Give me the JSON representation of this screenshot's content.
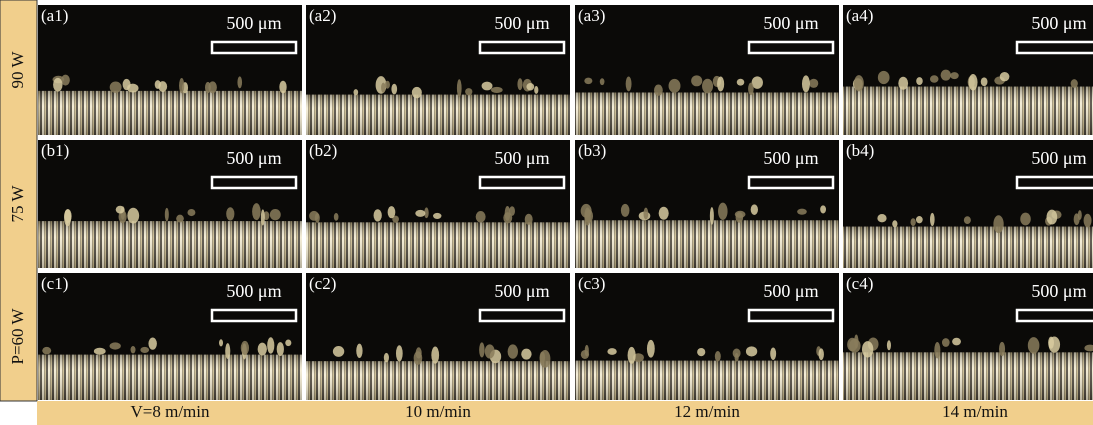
{
  "row_labels": [
    "90 W",
    "75 W",
    "P=60 W"
  ],
  "column_labels": [
    "V=8 m/min",
    "10 m/min",
    "12 m/min",
    "14 m/min"
  ],
  "panels": [
    [
      {
        "label": "(a1)",
        "scale": "500 μm"
      },
      {
        "label": "(a2)",
        "scale": "500 μm"
      },
      {
        "label": "(a3)",
        "scale": "500 μm"
      },
      {
        "label": "(a4)",
        "scale": "500 μm"
      }
    ],
    [
      {
        "label": "(b1)",
        "scale": "500 μm"
      },
      {
        "label": "(b2)",
        "scale": "500 μm"
      },
      {
        "label": "(b3)",
        "scale": "500 μm"
      },
      {
        "label": "(b4)",
        "scale": "500 μm"
      }
    ],
    [
      {
        "label": "(c1)",
        "scale": "500 μm"
      },
      {
        "label": "(c2)",
        "scale": "500 μm"
      },
      {
        "label": "(c3)",
        "scale": "500 μm"
      },
      {
        "label": "(c4)",
        "scale": "500 μm"
      }
    ]
  ]
}
